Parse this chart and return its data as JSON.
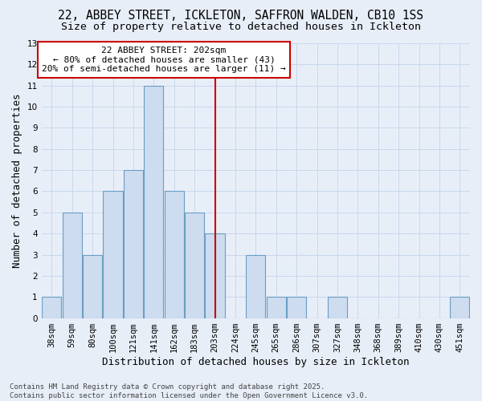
{
  "title": "22, ABBEY STREET, ICKLETON, SAFFRON WALDEN, CB10 1SS",
  "subtitle": "Size of property relative to detached houses in Ickleton",
  "xlabel": "Distribution of detached houses by size in Ickleton",
  "ylabel": "Number of detached properties",
  "bins": [
    "38sqm",
    "59sqm",
    "80sqm",
    "100sqm",
    "121sqm",
    "141sqm",
    "162sqm",
    "183sqm",
    "203sqm",
    "224sqm",
    "245sqm",
    "265sqm",
    "286sqm",
    "307sqm",
    "327sqm",
    "348sqm",
    "368sqm",
    "389sqm",
    "410sqm",
    "430sqm",
    "451sqm"
  ],
  "values": [
    1,
    5,
    3,
    6,
    7,
    11,
    6,
    5,
    4,
    0,
    3,
    1,
    1,
    0,
    1,
    0,
    0,
    0,
    0,
    0,
    1
  ],
  "bar_color": "#cddcee",
  "bar_edge_color": "#6a9ec5",
  "vline_index": 8,
  "vline_color": "#cc0000",
  "annotation_text": "22 ABBEY STREET: 202sqm\n← 80% of detached houses are smaller (43)\n20% of semi-detached houses are larger (11) →",
  "annotation_box_facecolor": "#ffffff",
  "annotation_box_edgecolor": "#cc0000",
  "ylim": [
    0,
    13
  ],
  "yticks": [
    0,
    1,
    2,
    3,
    4,
    5,
    6,
    7,
    8,
    9,
    10,
    11,
    12,
    13
  ],
  "grid_color": "#c8d8ec",
  "background_color": "#e8eef8",
  "footer_text": "Contains HM Land Registry data © Crown copyright and database right 2025.\nContains public sector information licensed under the Open Government Licence v3.0.",
  "title_fontsize": 10.5,
  "subtitle_fontsize": 9.5,
  "axis_label_fontsize": 9,
  "tick_fontsize": 7.5,
  "annotation_fontsize": 8,
  "footer_fontsize": 6.5
}
